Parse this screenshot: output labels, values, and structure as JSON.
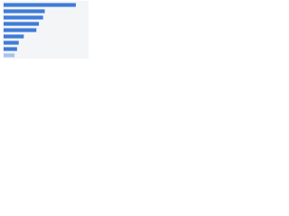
{
  "chart_data": {
    "type": "hbar",
    "categories": [
      null,
      null,
      null,
      null,
      null,
      null,
      null,
      null,
      null
    ],
    "values": [
      86,
      49,
      47,
      42,
      39,
      24,
      18,
      16,
      13
    ],
    "colors": [
      "#3f7bd9",
      "#3f7bd9",
      "#3f7bd9",
      "#3f7bd9",
      "#3f7bd9",
      "#3f7bd9",
      "#3f7bd9",
      "#3f7bd9",
      "#a7c3ef"
    ],
    "xlim": [
      0,
      100
    ]
  }
}
